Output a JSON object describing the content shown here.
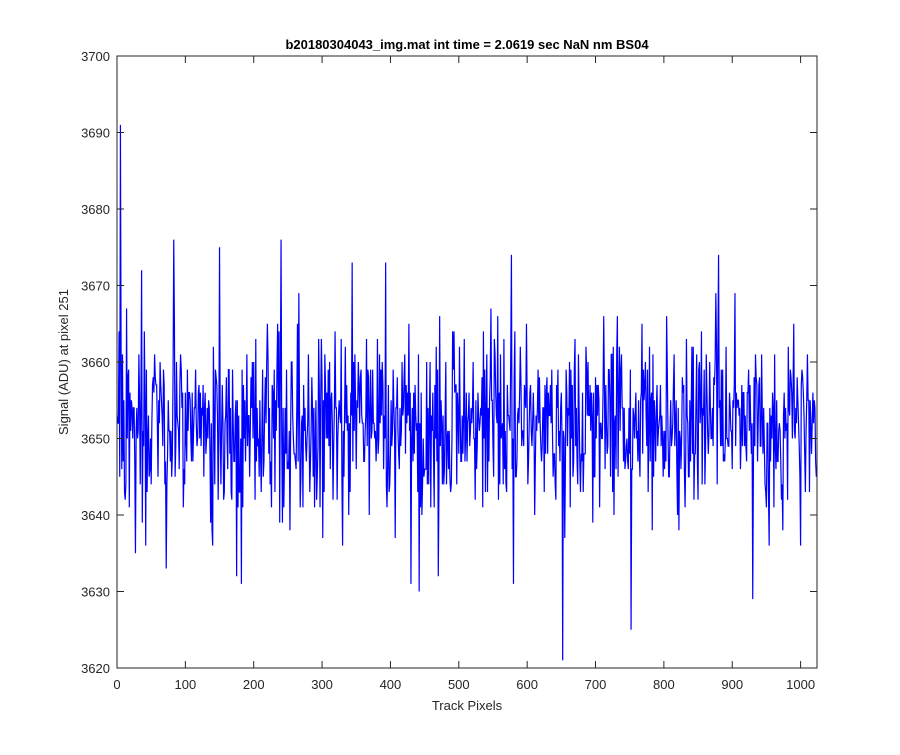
{
  "chart_data": {
    "type": "line",
    "title": "b20180304043_img.mat int time = 2.0619 sec  NaN nm BS04",
    "xlabel": "Track Pixels",
    "ylabel": "Signal (ADU) at pixel 251",
    "xlim": [
      0,
      1024
    ],
    "ylim": [
      3620,
      3700
    ],
    "xticks": [
      0,
      100,
      200,
      300,
      400,
      500,
      600,
      700,
      800,
      900,
      1000
    ],
    "yticks": [
      3620,
      3630,
      3640,
      3650,
      3660,
      3670,
      3680,
      3690,
      3700
    ],
    "grid": false,
    "legend": "none",
    "series": [
      {
        "color": "#0000ff",
        "n_points": 1024,
        "mean": 3652,
        "std": 6,
        "approx_range": [
          3621,
          3691
        ],
        "notable_points": [
          {
            "x": 1,
            "y": 3652
          },
          {
            "x": 3,
            "y": 3664
          },
          {
            "x": 5,
            "y": 3691
          },
          {
            "x": 7,
            "y": 3646
          },
          {
            "x": 11,
            "y": 3643
          },
          {
            "x": 14,
            "y": 3667
          },
          {
            "x": 18,
            "y": 3641
          },
          {
            "x": 36,
            "y": 3672
          },
          {
            "x": 42,
            "y": 3636
          },
          {
            "x": 72,
            "y": 3633
          },
          {
            "x": 83,
            "y": 3676
          },
          {
            "x": 140,
            "y": 3636
          },
          {
            "x": 150,
            "y": 3675
          },
          {
            "x": 175,
            "y": 3632
          },
          {
            "x": 182,
            "y": 3631
          },
          {
            "x": 240,
            "y": 3676
          },
          {
            "x": 344,
            "y": 3673
          },
          {
            "x": 393,
            "y": 3673
          },
          {
            "x": 430,
            "y": 3631
          },
          {
            "x": 442,
            "y": 3630
          },
          {
            "x": 470,
            "y": 3632
          },
          {
            "x": 577,
            "y": 3674
          },
          {
            "x": 580,
            "y": 3631
          },
          {
            "x": 652,
            "y": 3621
          },
          {
            "x": 752,
            "y": 3625
          },
          {
            "x": 880,
            "y": 3674
          },
          {
            "x": 930,
            "y": 3629
          },
          {
            "x": 1000,
            "y": 3636
          },
          {
            "x": 1023,
            "y": 3645
          }
        ]
      }
    ]
  }
}
